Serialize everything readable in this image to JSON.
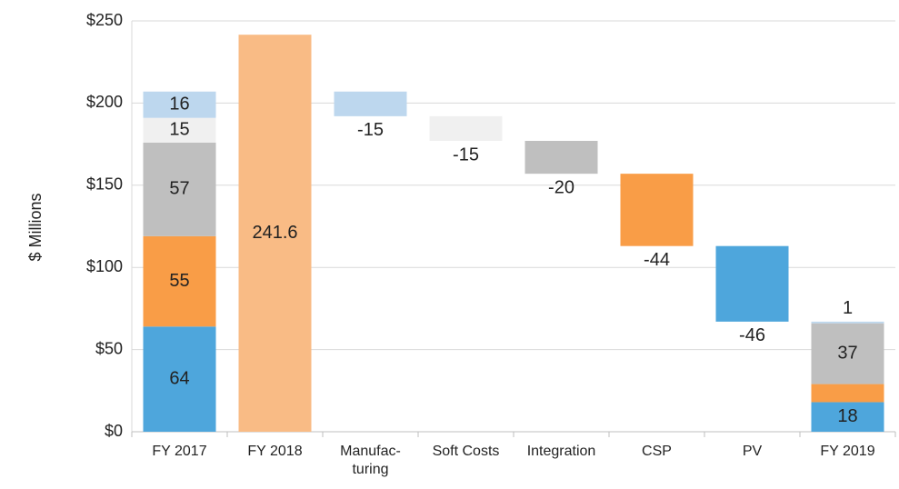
{
  "chart_data": {
    "type": "waterfall",
    "ylabel": "$ Millions",
    "categories": [
      "FY 2017",
      "FY 2018",
      "Manufac- turing",
      "Soft Costs",
      "Integration",
      "CSP",
      "PV",
      "FY 2019"
    ],
    "steps_start_at": "FY 2017",
    "series": [
      {
        "color": "#4ea6dc",
        "values": [
          64,
          null,
          null,
          null,
          null,
          null,
          -46,
          18
        ]
      },
      {
        "color": "#f99d47",
        "values": [
          55,
          null,
          null,
          null,
          null,
          -44,
          null,
          11
        ]
      },
      {
        "color": "#bfbfbf",
        "values": [
          57,
          null,
          null,
          null,
          -20,
          null,
          null,
          37
        ]
      },
      {
        "color": "#f0f0f0",
        "values": [
          15,
          null,
          null,
          -15,
          null,
          null,
          null,
          null
        ]
      },
      {
        "color": "#bdd7ee",
        "values": [
          16,
          null,
          -15,
          null,
          null,
          null,
          null,
          1
        ]
      },
      {
        "color": "#f9bb85",
        "values": [
          null,
          241.6,
          null,
          null,
          null,
          null,
          null,
          null
        ]
      }
    ],
    "ylim": [
      0,
      250
    ],
    "yticks": [
      {
        "value": 0,
        "label": "$0"
      },
      {
        "value": 50,
        "label": "$50"
      },
      {
        "value": 100,
        "label": "$100"
      },
      {
        "value": 150,
        "label": "$150"
      },
      {
        "value": 200,
        "label": "$200"
      },
      {
        "value": 250,
        "label": "$250"
      }
    ],
    "grid": true
  }
}
